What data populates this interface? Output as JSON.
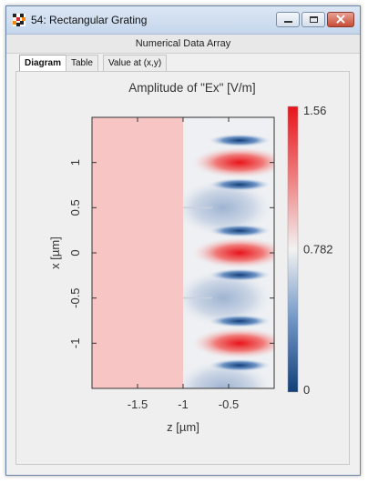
{
  "window": {
    "title": "54: Rectangular Grating"
  },
  "subheader": {
    "label": "Numerical Data Array"
  },
  "tabs": [
    {
      "label": "Diagram",
      "active": true
    },
    {
      "label": "Table",
      "active": false
    },
    {
      "label": "Value at (x,y)",
      "active": false
    }
  ],
  "colors": {
    "substrate": "#f8c5c5",
    "colormap_low": "#123f7a",
    "colormap_mid": "#f2f2f2",
    "colormap_high": "#e8141b"
  },
  "icons": [
    "app-icon",
    "minimize-icon",
    "maximize-icon",
    "close-icon"
  ],
  "chart_data": {
    "type": "heatmap",
    "title": "Amplitude of \"Ex\"  [V/m]",
    "xlabel": "z [µm]",
    "ylabel": "x [µm]",
    "xlim": [
      -2,
      0
    ],
    "ylim": [
      -1.5,
      1.5
    ],
    "xticks": [
      "-1.5",
      "-1",
      "-0.5"
    ],
    "xtick_values": [
      -1.5,
      -1,
      -0.5
    ],
    "yticks": [
      "1",
      "0.5",
      "0",
      "-0.5",
      "-1"
    ],
    "ytick_values": [
      1,
      0.5,
      0,
      -0.5,
      -1
    ],
    "colorbar": {
      "min_label": "0",
      "mid_label": "0.782",
      "max_label": "1.56",
      "min": 0,
      "mid": 0.782,
      "max": 1.56
    },
    "regions": [
      {
        "name": "substrate",
        "z_range": [
          -2,
          -1
        ],
        "value": 1.0
      },
      {
        "name": "grating",
        "z_range": [
          -1,
          0
        ],
        "period": 1.0,
        "ridge_centers": [
          1.0,
          0.0,
          -1.0
        ]
      }
    ]
  }
}
